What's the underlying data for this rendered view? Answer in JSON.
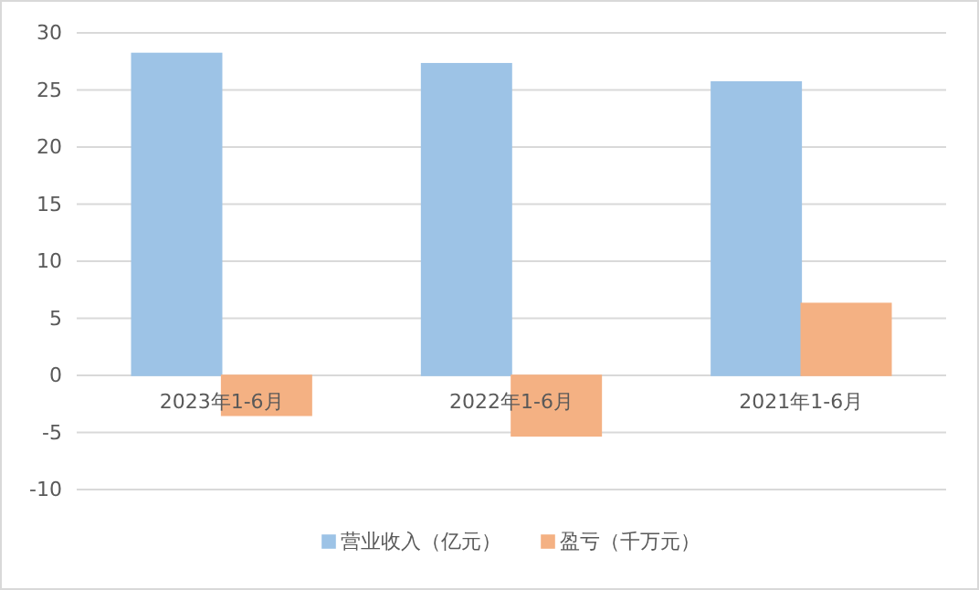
{
  "chart_data": {
    "type": "bar",
    "categories": [
      "2023年1-6月",
      "2022年1-6月",
      "2021年1-6月"
    ],
    "series": [
      {
        "name": "营业收入（亿元）",
        "color": "#9dc3e6",
        "values": [
          28.2,
          27.3,
          25.7
        ]
      },
      {
        "name": "盈亏（千万元）",
        "color": "#f4b183",
        "values": [
          -3.5,
          -5.3,
          6.3
        ]
      }
    ],
    "ylim": [
      -10,
      30
    ],
    "yticks": [
      -10,
      -5,
      0,
      5,
      10,
      15,
      20,
      25,
      30
    ],
    "grid": "y",
    "legend": "bottom"
  }
}
